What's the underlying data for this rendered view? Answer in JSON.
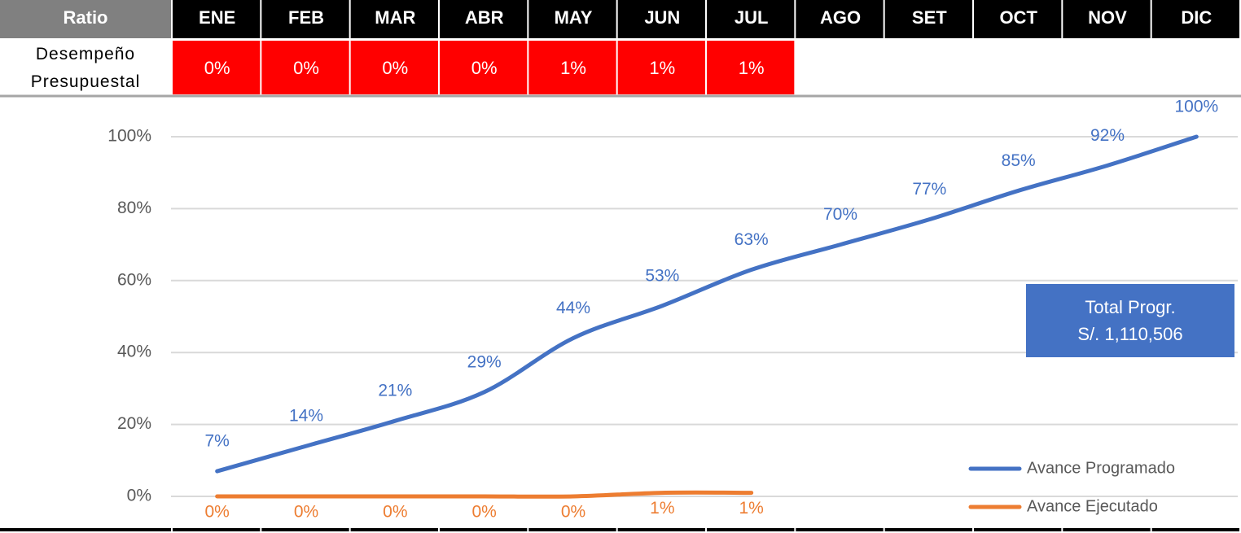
{
  "table": {
    "corner": "Ratio",
    "row_label": "Desempeño Presupuestal",
    "row_values": [
      "0%",
      "0%",
      "0%",
      "0%",
      "1%",
      "1%",
      "1%"
    ]
  },
  "chart_data": {
    "type": "line",
    "categories": [
      "ENE",
      "FEB",
      "MAR",
      "ABR",
      "MAY",
      "JUN",
      "JUL",
      "AGO",
      "SET",
      "OCT",
      "NOV",
      "DIC"
    ],
    "series": [
      {
        "name": "Avance Programado",
        "color": "#4472c4",
        "values": [
          7,
          14,
          21,
          29,
          44,
          53,
          63,
          70,
          77,
          85,
          92,
          100
        ],
        "value_labels": [
          "7%",
          "14%",
          "21%",
          "29%",
          "44%",
          "53%",
          "63%",
          "70%",
          "77%",
          "85%",
          "92%",
          "100%"
        ]
      },
      {
        "name": "Avance Ejecutado",
        "color": "#ed7d31",
        "values": [
          0,
          0,
          0,
          0,
          0,
          1,
          1,
          null,
          null,
          null,
          null,
          null
        ],
        "value_labels": [
          "0%",
          "0%",
          "0%",
          "0%",
          "0%",
          "1%",
          "1%",
          null,
          null,
          null,
          null,
          null
        ]
      }
    ],
    "ylim": [
      0,
      100
    ],
    "yticks": [
      {
        "value": 0,
        "label": "0%"
      },
      {
        "value": 20,
        "label": "20%"
      },
      {
        "value": 40,
        "label": "40%"
      },
      {
        "value": 60,
        "label": "60%"
      },
      {
        "value": 80,
        "label": "80%"
      },
      {
        "value": 100,
        "label": "100%"
      }
    ],
    "grid": true,
    "legend": "lower right",
    "annotation": [
      "Total Progr.",
      "S/. 1,110,506"
    ],
    "annotation_color": "#4472c4"
  }
}
